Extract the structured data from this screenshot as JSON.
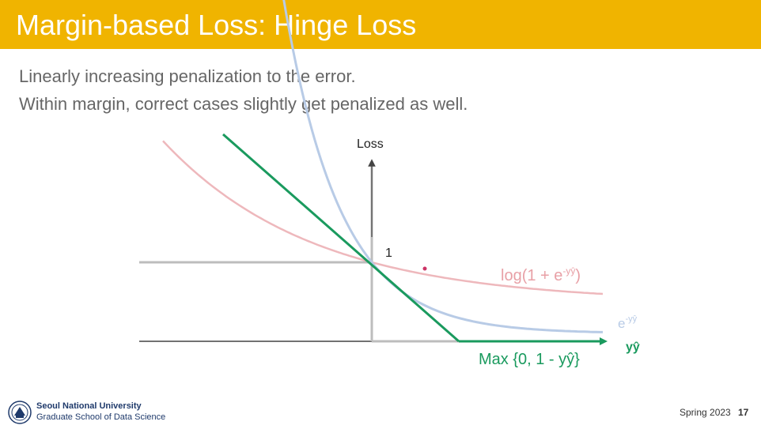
{
  "slide": {
    "title": "Margin-based Loss: Hinge Loss",
    "bullets": [
      "Linearly increasing penalization to the error.",
      "Within margin, correct cases slightly get penalized as well."
    ]
  },
  "diagram": {
    "y_axis_label": "Loss",
    "x_axis_label": "yŷ",
    "tick_one": "1",
    "curves": [
      {
        "name": "logistic",
        "label_main": "log(1 + e",
        "label_sup": "-yŷ",
        "label_end": ")",
        "color": "#e8a0a6"
      },
      {
        "name": "exponential",
        "label_main": "e",
        "label_sup": "-yŷ",
        "color": "#b8cbe6"
      },
      {
        "name": "hinge",
        "label": "Max {0, 1 - yŷ}",
        "color": "#1a9a5e"
      }
    ],
    "colors": {
      "axis": "#444444",
      "gray_lines": "#bdbdbd",
      "dot": "#cc3366"
    }
  },
  "footer": {
    "university": "Seoul National University",
    "school": "Graduate School of Data Science",
    "term": "Spring 2023",
    "page": "17"
  }
}
